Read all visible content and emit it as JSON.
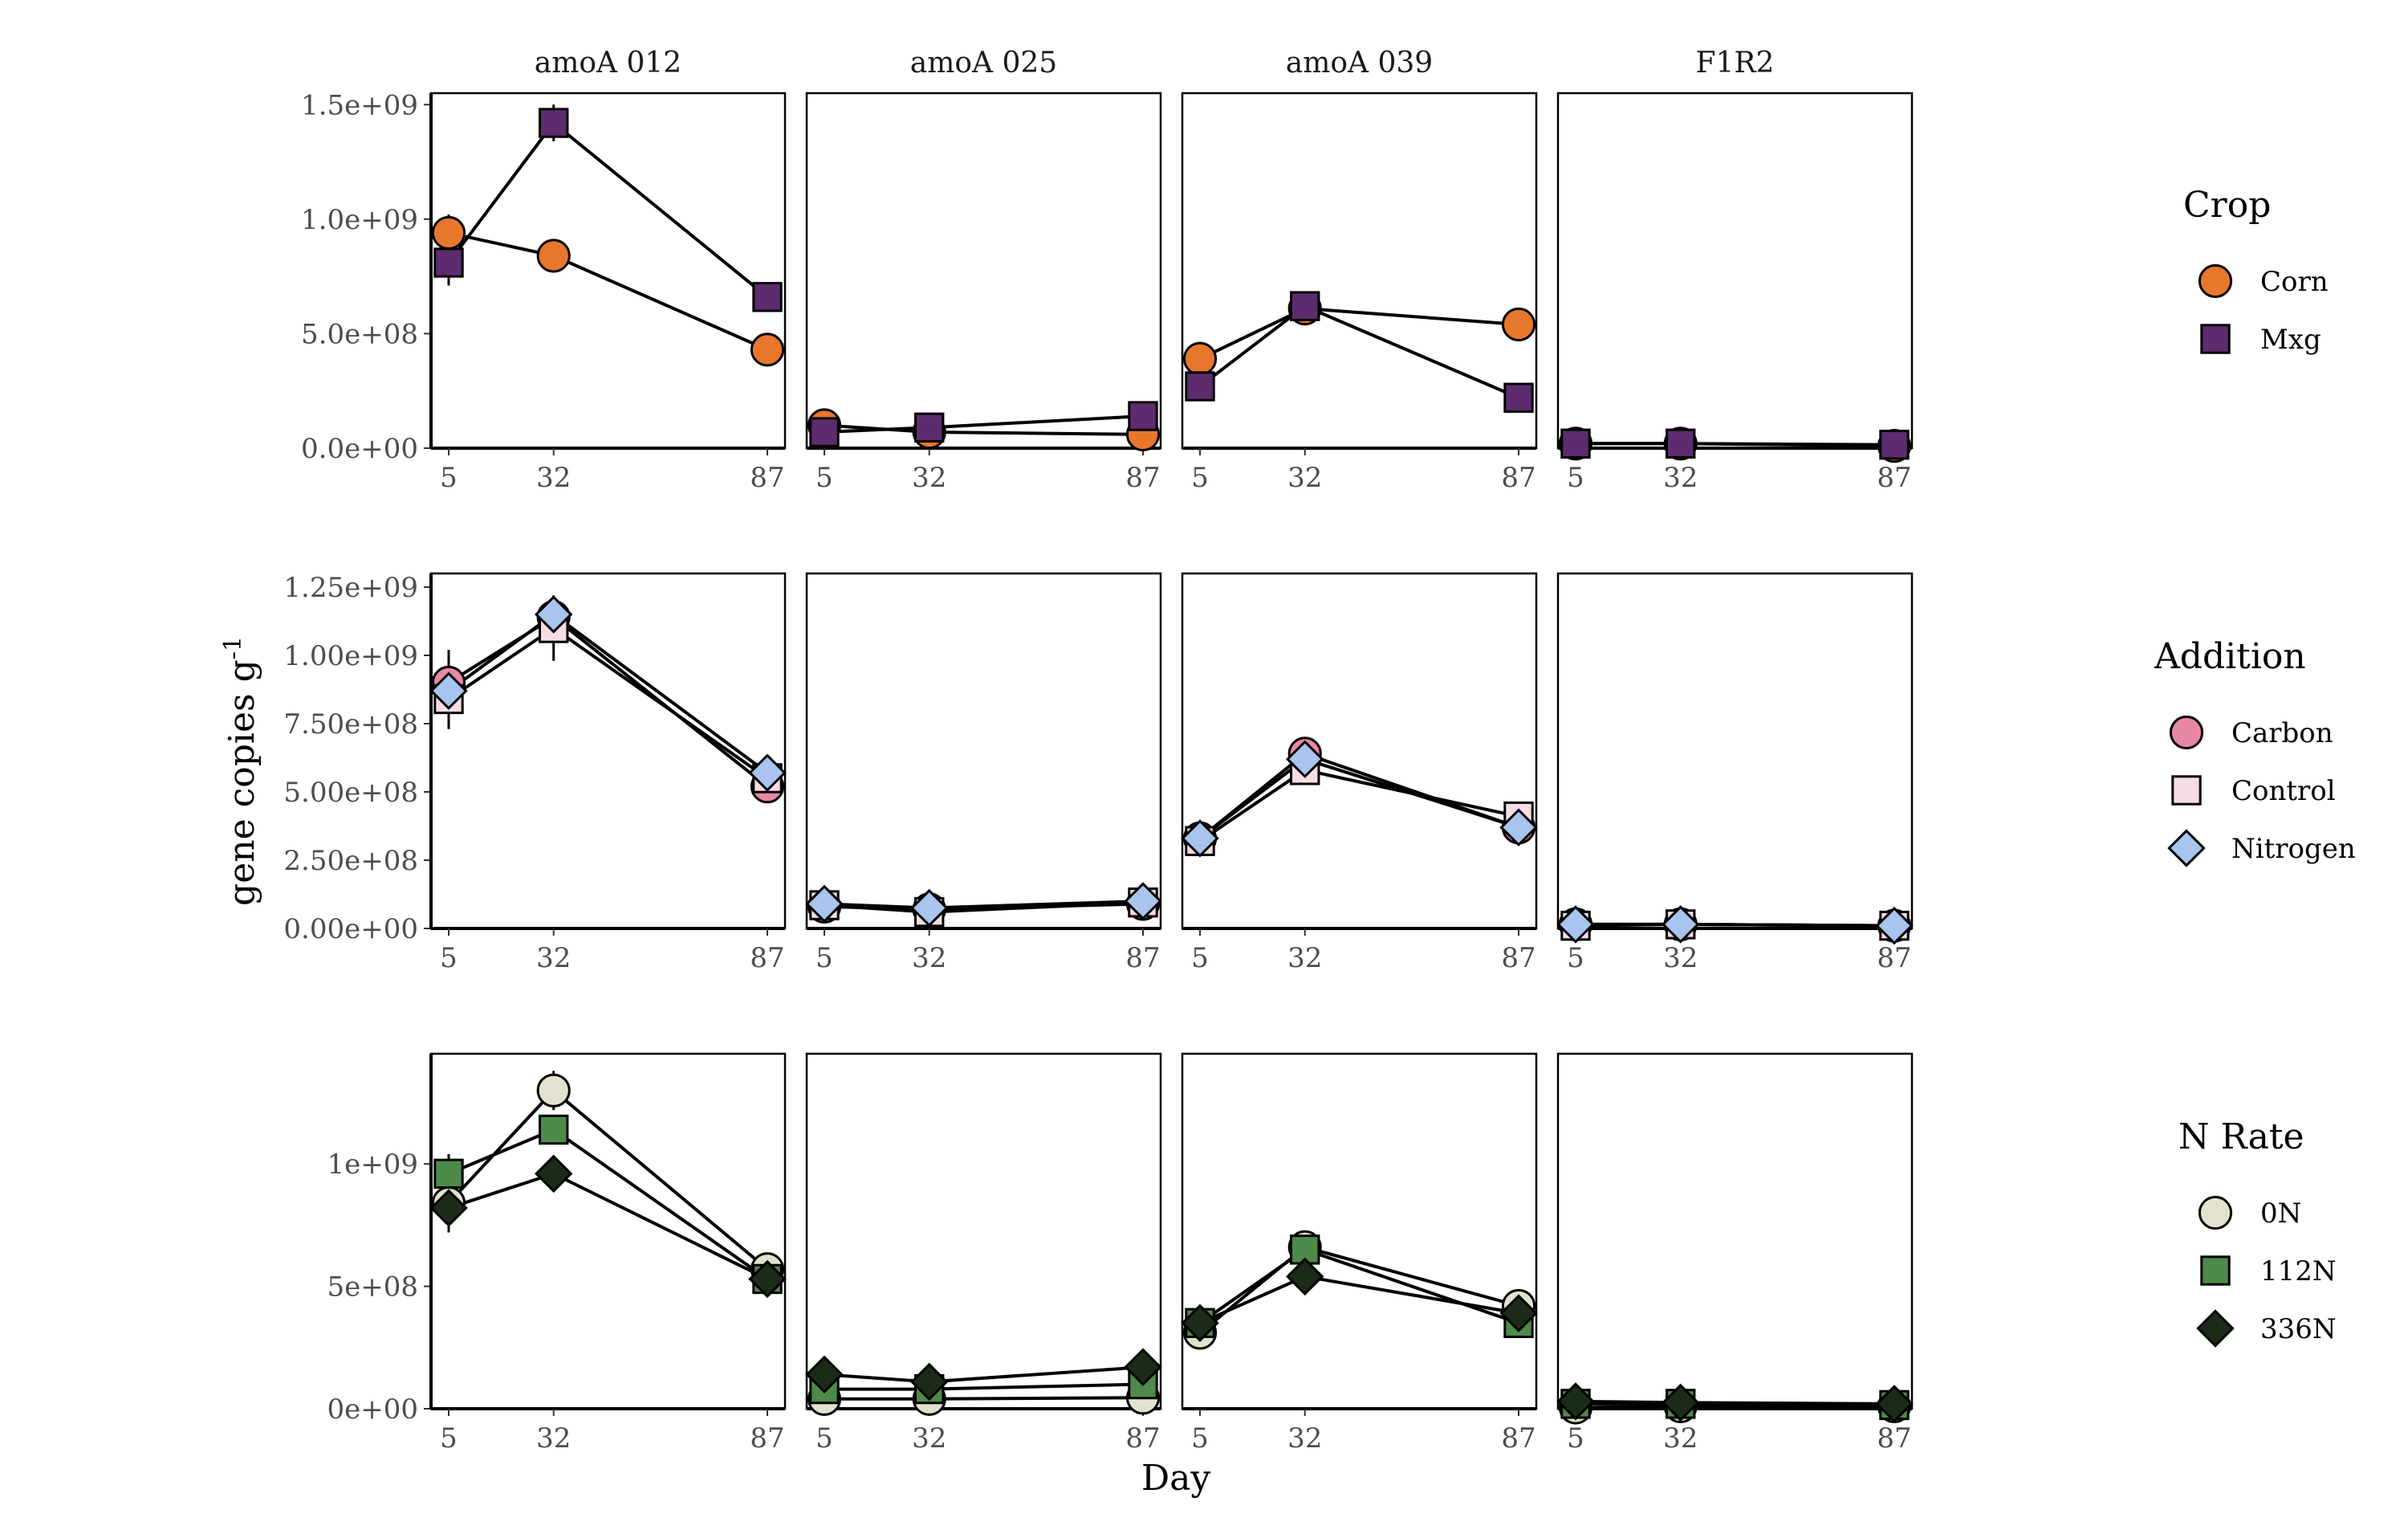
{
  "chart_data": {
    "type": "line",
    "facets": [
      "amoA 012",
      "amoA 025",
      "amoA 039",
      "F1R2"
    ],
    "x": [
      5,
      32,
      87
    ],
    "xlabel": "Day",
    "ylabel": "gene copies g",
    "ylabel_superscript": "-1",
    "rows": [
      {
        "legend_title": "Crop",
        "ylim": [
          0,
          1550000000
        ],
        "yticks": [
          0,
          500000000,
          1000000000,
          1500000000
        ],
        "ytick_labels": [
          "0.0e+00",
          "5.0e+08",
          "1.0e+09",
          "1.5e+09"
        ],
        "series": [
          {
            "name": "Corn",
            "color": "#E8772E",
            "shape": "circle",
            "values": [
              [
                940000000,
                840000000,
                430000000
              ],
              [
                100000000,
                70000000,
                60000000
              ],
              [
                390000000,
                610000000,
                540000000
              ],
              [
                20000000,
                20000000,
                10000000
              ]
            ],
            "errors": [
              [
                80000000,
                0,
                0
              ],
              [
                0,
                0,
                0
              ],
              [
                0,
                0,
                0
              ],
              [
                0,
                0,
                0
              ]
            ]
          },
          {
            "name": "Mxg",
            "color": "#5E2C6E",
            "shape": "square",
            "values": [
              [
                810000000,
                1420000000,
                660000000
              ],
              [
                70000000,
                90000000,
                140000000
              ],
              [
                270000000,
                620000000,
                220000000
              ],
              [
                20000000,
                20000000,
                15000000
              ]
            ],
            "errors": [
              [
                100000000,
                80000000,
                0
              ],
              [
                0,
                0,
                0
              ],
              [
                0,
                0,
                0
              ],
              [
                0,
                0,
                0
              ]
            ]
          }
        ]
      },
      {
        "legend_title": "Addition",
        "ylim": [
          0,
          1300000000
        ],
        "yticks": [
          0,
          250000000,
          500000000,
          750000000,
          1000000000,
          1250000000
        ],
        "ytick_labels": [
          "0.00e+00",
          "2.50e+08",
          "5.00e+08",
          "7.50e+08",
          "1.00e+09",
          "1.25e+09"
        ],
        "series": [
          {
            "name": "Carbon",
            "color": "#E887A3",
            "shape": "circle",
            "values": [
              [
                900000000,
                1140000000,
                520000000
              ],
              [
                80000000,
                70000000,
                90000000
              ],
              [
                330000000,
                640000000,
                370000000
              ],
              [
                15000000,
                15000000,
                10000000
              ]
            ],
            "errors": [
              [
                120000000,
                0,
                0
              ],
              [
                0,
                0,
                0
              ],
              [
                0,
                0,
                0
              ],
              [
                0,
                0,
                0
              ]
            ]
          },
          {
            "name": "Control",
            "color": "#F7DDE3",
            "shape": "square",
            "values": [
              [
                840000000,
                1100000000,
                550000000
              ],
              [
                85000000,
                60000000,
                95000000
              ],
              [
                320000000,
                580000000,
                410000000
              ],
              [
                10000000,
                15000000,
                10000000
              ]
            ],
            "errors": [
              [
                110000000,
                120000000,
                0
              ],
              [
                0,
                0,
                0
              ],
              [
                0,
                0,
                0
              ],
              [
                0,
                0,
                0
              ]
            ]
          },
          {
            "name": "Nitrogen",
            "color": "#A8C4EF",
            "shape": "diamond",
            "values": [
              [
                870000000,
                1150000000,
                570000000
              ],
              [
                90000000,
                75000000,
                100000000
              ],
              [
                330000000,
                620000000,
                370000000
              ],
              [
                15000000,
                15000000,
                10000000
              ]
            ],
            "errors": [
              [
                0,
                0,
                0
              ],
              [
                0,
                0,
                0
              ],
              [
                0,
                0,
                0
              ],
              [
                0,
                0,
                0
              ]
            ]
          }
        ]
      },
      {
        "legend_title": "N Rate",
        "ylim": [
          0,
          1450000000
        ],
        "yticks": [
          0,
          500000000,
          1000000000
        ],
        "ytick_labels": [
          "0e+00",
          "5e+08",
          "1e+09"
        ],
        "series": [
          {
            "name": "0N",
            "color": "#E3E2CF",
            "shape": "circle",
            "values": [
              [
                840000000,
                1300000000,
                570000000
              ],
              [
                40000000,
                40000000,
                45000000
              ],
              [
                310000000,
                660000000,
                420000000
              ],
              [
                5000000,
                10000000,
                10000000
              ]
            ],
            "errors": [
              [
                0,
                80000000,
                0
              ],
              [
                0,
                0,
                0
              ],
              [
                0,
                0,
                0
              ],
              [
                0,
                0,
                0
              ]
            ]
          },
          {
            "name": "112N",
            "color": "#4E8A4A",
            "shape": "square",
            "values": [
              [
                960000000,
                1140000000,
                530000000
              ],
              [
                80000000,
                80000000,
                100000000
              ],
              [
                350000000,
                650000000,
                350000000
              ],
              [
                20000000,
                20000000,
                15000000
              ]
            ],
            "errors": [
              [
                80000000,
                0,
                0
              ],
              [
                0,
                0,
                0
              ],
              [
                0,
                0,
                0
              ],
              [
                0,
                0,
                0
              ]
            ]
          },
          {
            "name": "336N",
            "color": "#1B2B17",
            "shape": "diamond",
            "values": [
              [
                820000000,
                960000000,
                530000000
              ],
              [
                140000000,
                110000000,
                170000000
              ],
              [
                350000000,
                540000000,
                390000000
              ],
              [
                30000000,
                25000000,
                20000000
              ]
            ],
            "errors": [
              [
                100000000,
                0,
                0
              ],
              [
                0,
                0,
                0
              ],
              [
                0,
                0,
                0
              ],
              [
                0,
                0,
                0
              ]
            ]
          }
        ]
      }
    ]
  }
}
